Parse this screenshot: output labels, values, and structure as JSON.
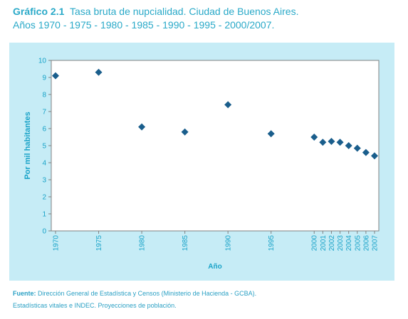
{
  "heading": {
    "number": "Gráfico 2.1",
    "title": "Tasa bruta de nupcialidad. Ciudad de Buenos Aires.",
    "subtitle": "Años 1970 - 1975 - 1980 - 1985 - 1990 - 1995 - 2000/2007."
  },
  "source": {
    "label": "Fuente:",
    "line1": "Dirección General de Estadística y Censos (Ministerio de Hacienda - GCBA).",
    "line2": "Estadísticas vitales e INDEC. Proyecciones de población."
  },
  "colors": {
    "accent": "#29a9c8",
    "chart_background": "#c6ecf6",
    "marker": "#1a5e8c"
  },
  "chart_data": {
    "type": "scatter",
    "title": "",
    "xlabel": "Año",
    "ylabel": "Por mil habitantes",
    "ylim": [
      0,
      10
    ],
    "yticks": [
      0,
      1,
      2,
      3,
      4,
      5,
      6,
      7,
      8,
      9,
      10
    ],
    "grid": false,
    "x": [
      "1970",
      "1975",
      "1980",
      "1985",
      "1990",
      "1995",
      "2000",
      "2001",
      "2002",
      "2003",
      "2004",
      "2005",
      "2006",
      "2007"
    ],
    "values": [
      9.1,
      9.3,
      6.1,
      5.8,
      7.4,
      5.7,
      5.5,
      5.2,
      5.25,
      5.2,
      5.0,
      4.85,
      4.6,
      4.4
    ]
  }
}
